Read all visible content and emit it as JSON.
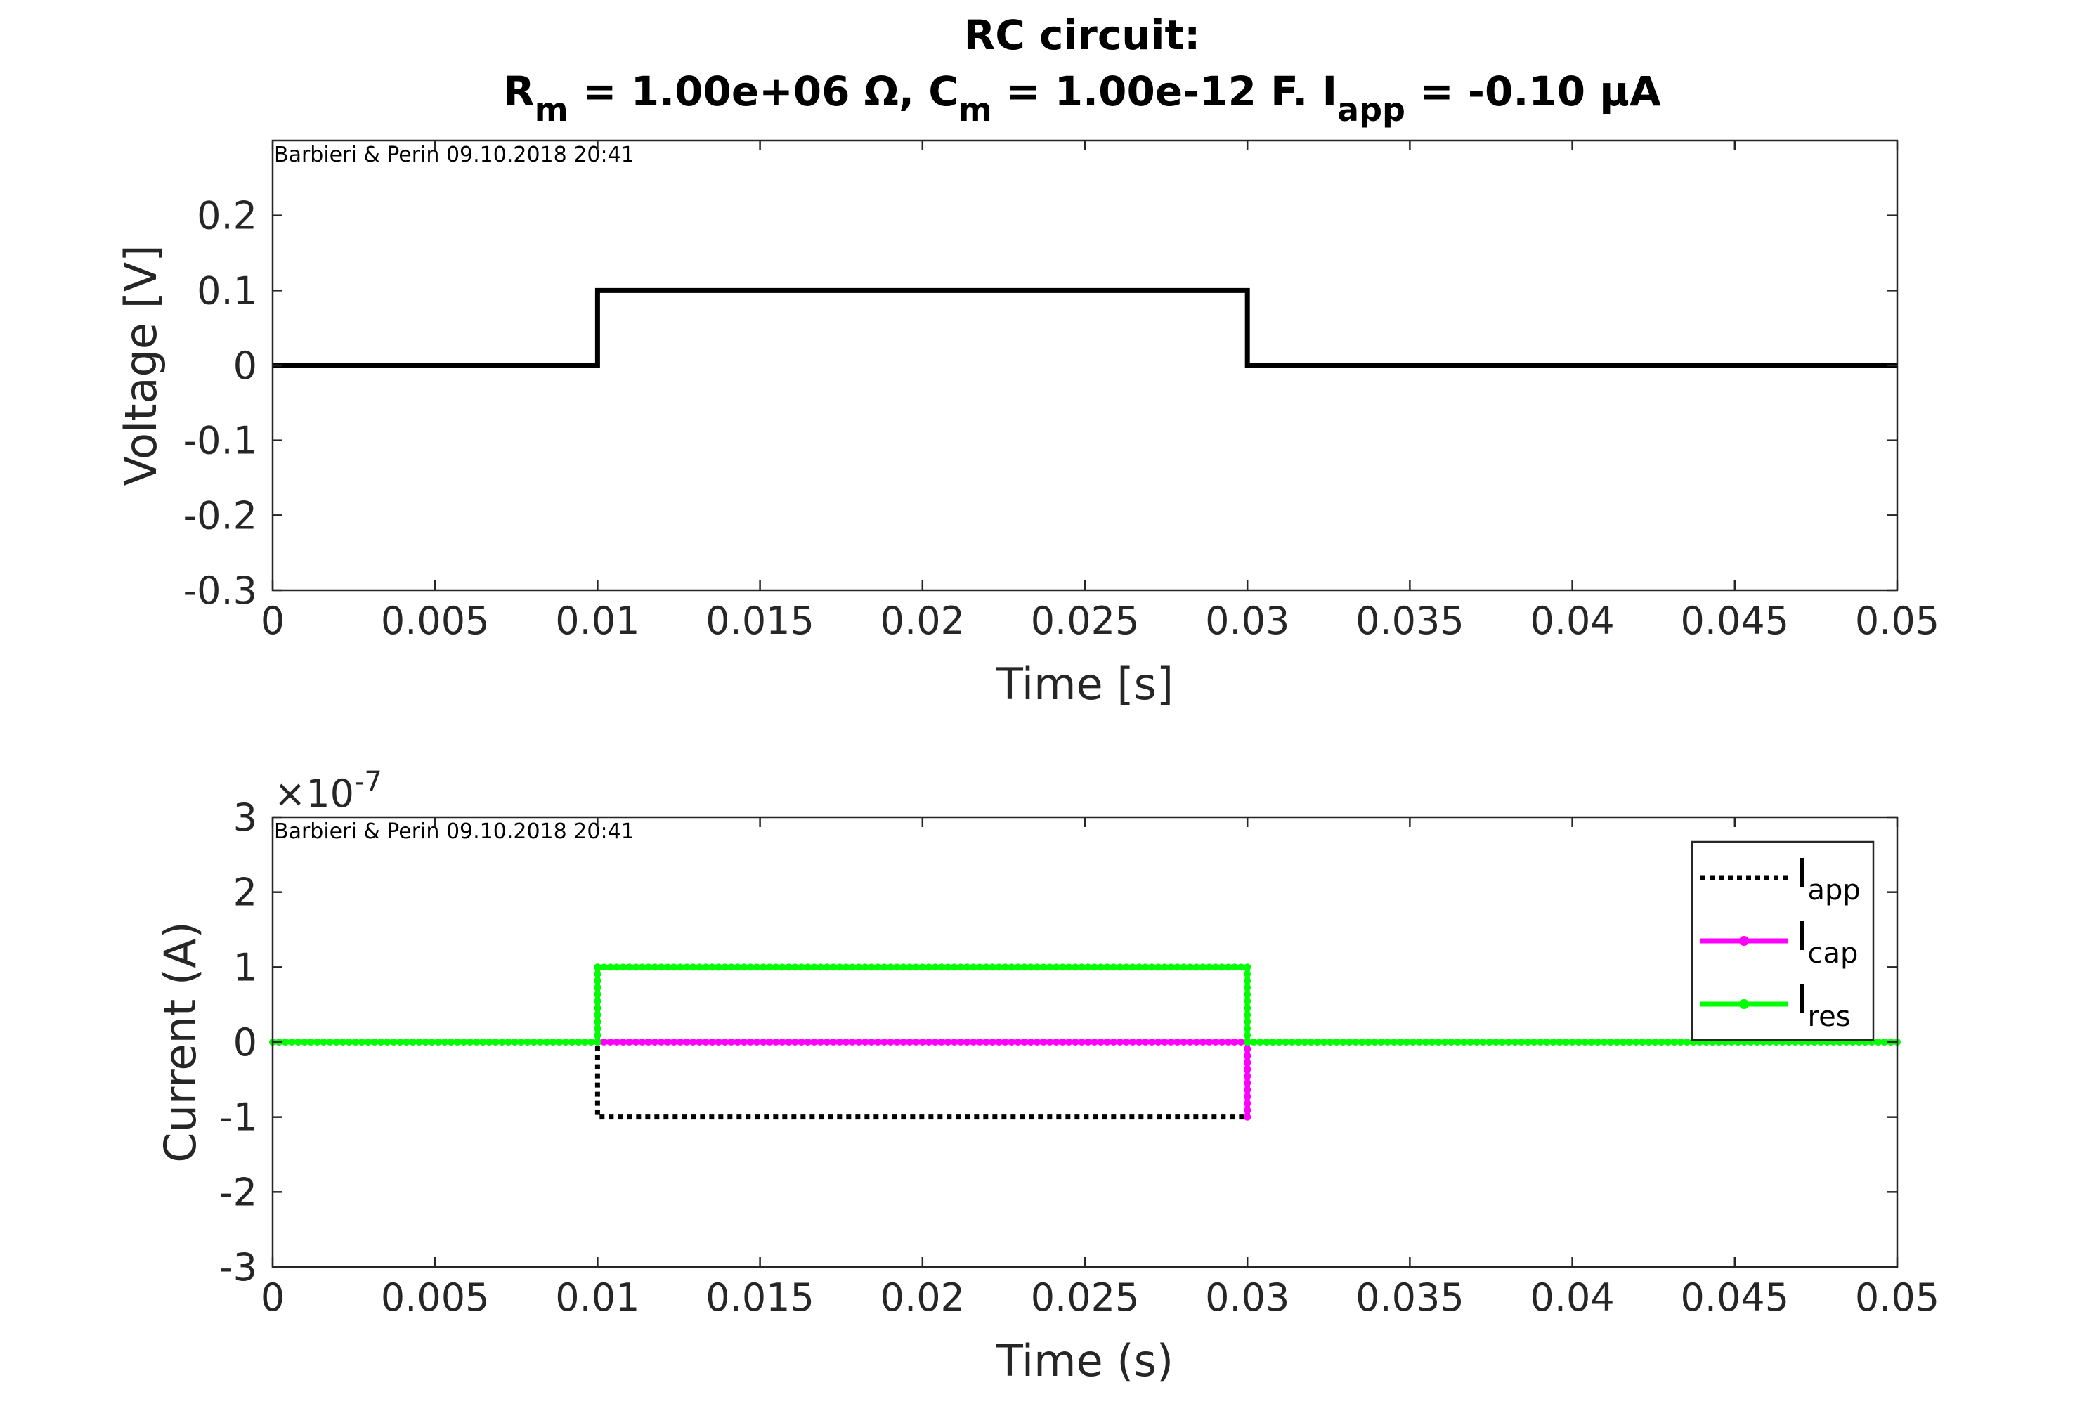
{
  "figure": {
    "title_line1": "RC circuit:",
    "title_line2": {
      "r_sym": "R",
      "r_sub": "m",
      "r_val": " = 1.00e+06 Ω, ",
      "c_sym": "C",
      "c_sub": "m",
      "c_val": " = 1.00e-12 F. ",
      "i_sym": "I",
      "i_sub": "app",
      "i_val": " = -0.10 μA"
    }
  },
  "chart_data": [
    {
      "type": "line",
      "stamp": "Barbieri & Perin 09.10.2018 20:41",
      "xlabel": "Time [s]",
      "ylabel": "Voltage [V]",
      "xlim": [
        0,
        0.05
      ],
      "ylim": [
        -0.3,
        0.3
      ],
      "xticks": [
        0,
        0.005,
        0.01,
        0.015,
        0.02,
        0.025,
        0.03,
        0.035,
        0.04,
        0.045,
        0.05
      ],
      "xtick_labels": [
        "0",
        "0.005",
        "0.01",
        "0.015",
        "0.02",
        "0.025",
        "0.03",
        "0.035",
        "0.04",
        "0.045",
        "0.05"
      ],
      "yticks": [
        -0.3,
        -0.2,
        -0.1,
        0,
        0.1,
        0.2
      ],
      "ytick_labels": [
        "-0.3",
        "-0.2",
        "-0.1",
        "0",
        "0.1",
        "0.2"
      ],
      "series": [
        {
          "color": "#000000",
          "style": "solid",
          "x": [
            0,
            0.01,
            0.01,
            0.03,
            0.03,
            0.05
          ],
          "y": [
            0,
            0,
            0.1,
            0.1,
            0,
            0
          ]
        }
      ]
    },
    {
      "type": "line",
      "stamp": "Barbieri & Perin 09.10.2018 20:41",
      "xlabel": "Time (s)",
      "ylabel": "Current (A)",
      "exponent_label": "×10",
      "exponent_power": "-7",
      "scale": 1e-07,
      "xlim": [
        0,
        0.05
      ],
      "ylim": [
        -3e-07,
        3e-07
      ],
      "xticks": [
        0,
        0.005,
        0.01,
        0.015,
        0.02,
        0.025,
        0.03,
        0.035,
        0.04,
        0.045,
        0.05
      ],
      "xtick_labels": [
        "0",
        "0.005",
        "0.01",
        "0.015",
        "0.02",
        "0.025",
        "0.03",
        "0.035",
        "0.04",
        "0.045",
        "0.05"
      ],
      "yticks": [
        -3e-07,
        -2e-07,
        -1e-07,
        0,
        1e-07,
        2e-07,
        3e-07
      ],
      "ytick_labels": [
        "-3",
        "-2",
        "-1",
        "0",
        "1",
        "2",
        "3"
      ],
      "legend_position": "top-right",
      "series": [
        {
          "name": "I",
          "name_sub": "app",
          "color": "#000000",
          "style": "dotted",
          "x": [
            0,
            0.01,
            0.01,
            0.03,
            0.03,
            0.05
          ],
          "y": [
            0,
            0,
            -1e-07,
            -1e-07,
            0,
            0
          ]
        },
        {
          "name": "I",
          "name_sub": "cap",
          "color": "#ff00ff",
          "style": "solid-markers",
          "x": [
            0,
            0.01,
            0.01,
            0.01,
            0.03,
            0.03,
            0.03,
            0.05
          ],
          "y": [
            0,
            0,
            1e-07,
            0,
            0,
            -1e-07,
            0,
            0
          ]
        },
        {
          "name": "I",
          "name_sub": "res",
          "color": "#00ff00",
          "style": "solid-markers",
          "x": [
            0,
            0.01,
            0.01,
            0.03,
            0.03,
            0.05
          ],
          "y": [
            0,
            0,
            1e-07,
            1e-07,
            0,
            0
          ]
        }
      ]
    }
  ]
}
